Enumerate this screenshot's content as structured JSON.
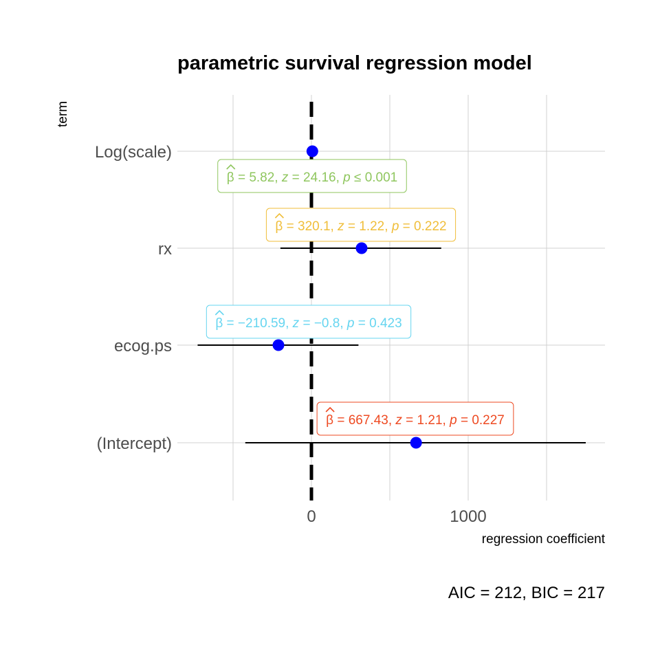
{
  "chart_data": {
    "type": "scatter",
    "title": "parametric survival regression model",
    "xlabel": "regression coefficient",
    "ylabel": "term",
    "caption": "AIC = 212, BIC = 217",
    "xlim": [
      -500,
      1870
    ],
    "x_ticks": [
      0,
      1000
    ],
    "x_tick_labels": [
      "0",
      "1000"
    ],
    "x_minor_gridlines": [
      -500,
      500,
      1500
    ],
    "reference_line": 0,
    "grid": true,
    "point_color": "#0000ff",
    "terms": [
      {
        "term": "Log(scale)",
        "estimate": 5.82,
        "conf_low": null,
        "conf_high": null,
        "label": {
          "beta": "5.82",
          "stat": "24.16",
          "p_op": "≤",
          "p": "0.001"
        },
        "label_color": "#8fc65e"
      },
      {
        "term": "rx",
        "estimate": 320.1,
        "conf_low": -198,
        "conf_high": 828,
        "label": {
          "beta": "320.1",
          "stat": "1.22",
          "p_op": "=",
          "p": "0.222"
        },
        "label_color": "#f0be3a"
      },
      {
        "term": "ecog.ps",
        "estimate": -210.59,
        "conf_low": -726,
        "conf_high": 300,
        "label": {
          "beta": "−210.59",
          "stat": "−0.8",
          "p_op": "=",
          "p": "0.423"
        },
        "label_color": "#66d5f0"
      },
      {
        "term": "(Intercept)",
        "estimate": 667.43,
        "conf_low": -422,
        "conf_high": 1750,
        "label": {
          "beta": "667.43",
          "stat": "1.21",
          "p_op": "=",
          "p": "0.227"
        },
        "label_color": "#ee4a22"
      }
    ]
  }
}
